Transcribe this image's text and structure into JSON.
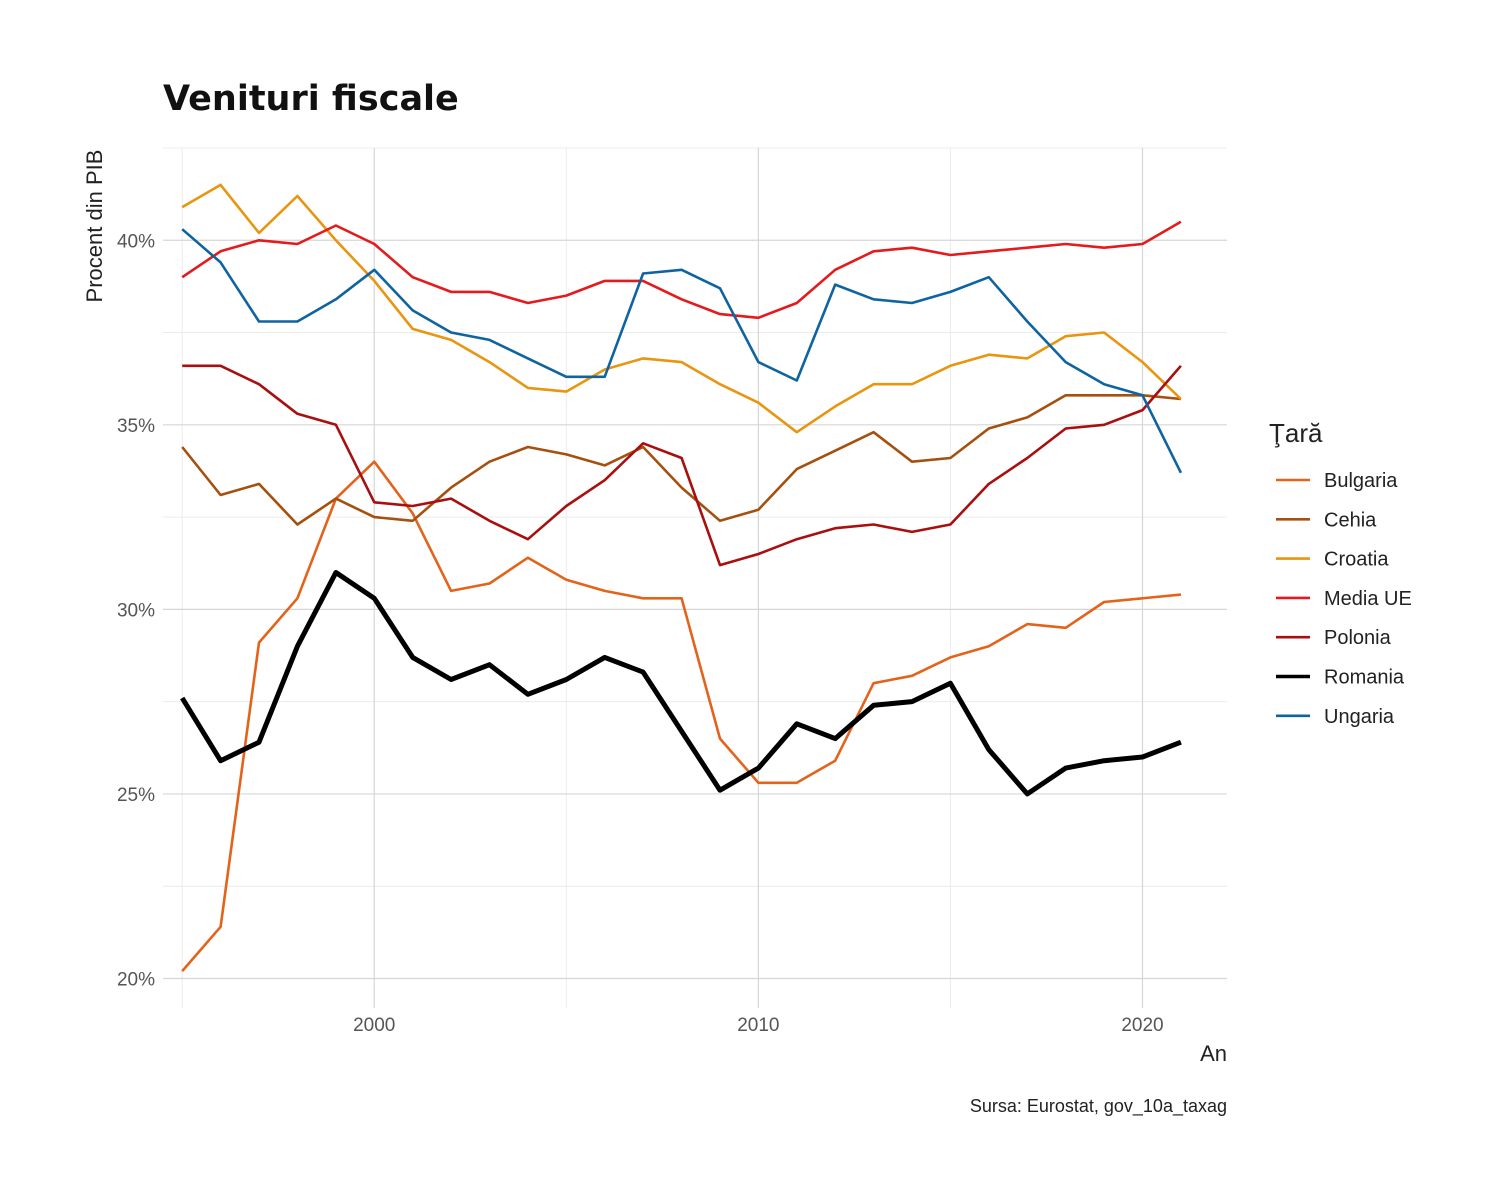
{
  "chart_data": {
    "type": "line",
    "title": "Venituri fiscale",
    "xlabel": "An",
    "ylabel": "Procent din PIB",
    "caption": "Sursa: Eurostat, gov_10a_taxag",
    "legend_title": "Ţară",
    "legend_position": "right",
    "grid": true,
    "xlim": [
      1994.5,
      2022.2
    ],
    "ylim": [
      19.2,
      42.5
    ],
    "x_ticks": [
      2000,
      2010,
      2020
    ],
    "x_tick_labels": [
      "2000",
      "2010",
      "2020"
    ],
    "y_ticks": [
      20,
      25,
      30,
      35,
      40
    ],
    "y_tick_labels": [
      "20%",
      "25%",
      "30%",
      "35%",
      "40%"
    ],
    "x": [
      1995,
      1996,
      1997,
      1998,
      1999,
      2000,
      2001,
      2002,
      2003,
      2004,
      2005,
      2006,
      2007,
      2008,
      2009,
      2010,
      2011,
      2012,
      2013,
      2014,
      2015,
      2016,
      2017,
      2018,
      2019,
      2020,
      2021
    ],
    "series": [
      {
        "name": "Bulgaria",
        "color": "#e3631b",
        "values": [
          20.2,
          21.4,
          29.1,
          30.3,
          33.0,
          34.0,
          32.6,
          30.5,
          30.7,
          31.4,
          30.8,
          30.5,
          30.3,
          30.3,
          26.5,
          25.3,
          25.3,
          25.9,
          28.0,
          28.2,
          28.7,
          29.0,
          29.6,
          29.5,
          30.2,
          30.3,
          30.4
        ]
      },
      {
        "name": "Cehia",
        "color": "#a6500f",
        "values": [
          34.4,
          33.1,
          33.4,
          32.3,
          33.0,
          32.5,
          32.4,
          33.3,
          34.0,
          34.4,
          34.2,
          33.9,
          34.4,
          33.3,
          32.4,
          32.7,
          33.8,
          34.3,
          34.8,
          34.0,
          34.1,
          34.9,
          35.2,
          35.8,
          35.8,
          35.8,
          35.7
        ]
      },
      {
        "name": "Croatia",
        "color": "#e8950f",
        "values": [
          40.9,
          41.5,
          40.2,
          41.2,
          40.0,
          38.9,
          37.6,
          37.3,
          36.7,
          36.0,
          35.9,
          36.5,
          36.8,
          36.7,
          36.1,
          35.6,
          34.8,
          35.5,
          36.1,
          36.1,
          36.6,
          36.9,
          36.8,
          37.4,
          37.5,
          36.7,
          35.7
        ]
      },
      {
        "name": "Media UE",
        "color": "#e41a1c",
        "values": [
          39.0,
          39.7,
          40.0,
          39.9,
          40.4,
          39.9,
          39.0,
          38.6,
          38.6,
          38.3,
          38.5,
          38.9,
          38.9,
          38.4,
          38.0,
          37.9,
          38.3,
          39.2,
          39.7,
          39.8,
          39.6,
          39.7,
          39.8,
          39.9,
          39.8,
          39.9,
          40.5
        ]
      },
      {
        "name": "Polonia",
        "color": "#a80f0f",
        "values": [
          36.6,
          36.6,
          36.1,
          35.3,
          35.0,
          32.9,
          32.8,
          33.0,
          32.4,
          31.9,
          32.8,
          33.5,
          34.5,
          34.1,
          31.2,
          31.5,
          31.9,
          32.2,
          32.3,
          32.1,
          32.3,
          33.4,
          34.1,
          34.9,
          35.0,
          35.4,
          36.6
        ]
      },
      {
        "name": "Romania",
        "color": "#000000",
        "values": [
          27.6,
          25.9,
          26.4,
          29.0,
          31.0,
          30.3,
          28.7,
          28.1,
          28.5,
          27.7,
          28.1,
          28.7,
          28.3,
          26.7,
          25.1,
          25.7,
          26.9,
          26.5,
          27.4,
          27.5,
          28.0,
          26.2,
          25.0,
          25.7,
          25.9,
          26.0,
          26.4
        ]
      },
      {
        "name": "Ungaria",
        "color": "#0f64a0",
        "values": [
          40.3,
          39.4,
          37.8,
          37.8,
          38.4,
          39.2,
          38.1,
          37.5,
          37.3,
          36.8,
          36.3,
          36.3,
          39.1,
          39.2,
          38.7,
          36.7,
          36.2,
          38.8,
          38.4,
          38.3,
          38.6,
          39.0,
          37.8,
          36.7,
          36.1,
          35.8,
          33.7
        ]
      }
    ]
  }
}
